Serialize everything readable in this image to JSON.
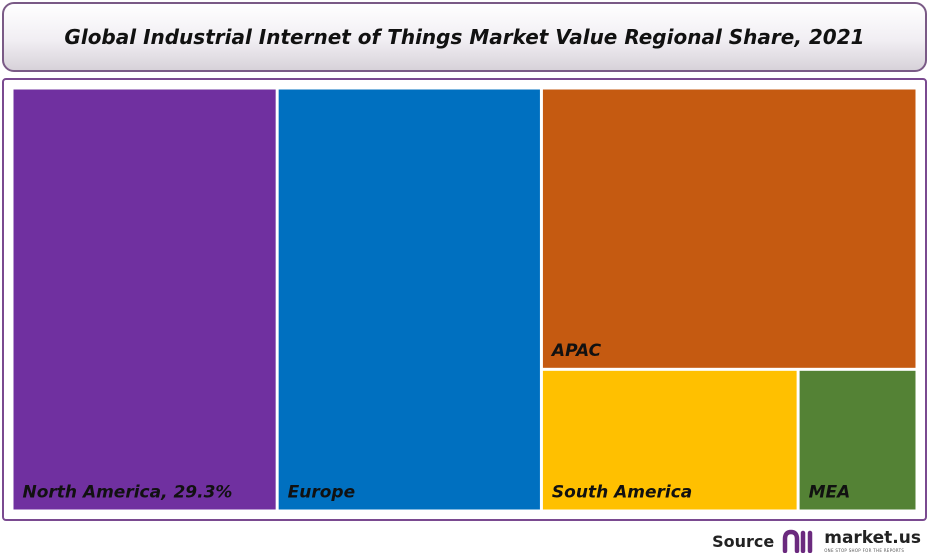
{
  "title": "Global Industrial Internet of Things Market Value Regional Share, 2021",
  "source": {
    "label": "Source",
    "brand": "market.us",
    "tagline": "ONE STOP SHOP FOR THE REPORTS",
    "logo_icon": "market-us-logo-icon",
    "logo_color": "#6b2a7e"
  },
  "chart_data": {
    "type": "treemap",
    "title": "Global Industrial Internet of Things Market Value Regional Share, 2021",
    "items": [
      {
        "name": "North America",
        "label": "North America, 29.3%",
        "value": 29.3,
        "color": "#7030a0"
      },
      {
        "name": "Europe",
        "label": "Europe",
        "value": 29.2,
        "color": "#0070c0"
      },
      {
        "name": "APAC",
        "label": "APAC",
        "value": 27.6,
        "color": "#c55a11"
      },
      {
        "name": "South America",
        "label": "South America",
        "value": 9.5,
        "color": "#ffc000"
      },
      {
        "name": "MEA",
        "label": "MEA",
        "value": 4.4,
        "color": "#548235"
      }
    ]
  }
}
